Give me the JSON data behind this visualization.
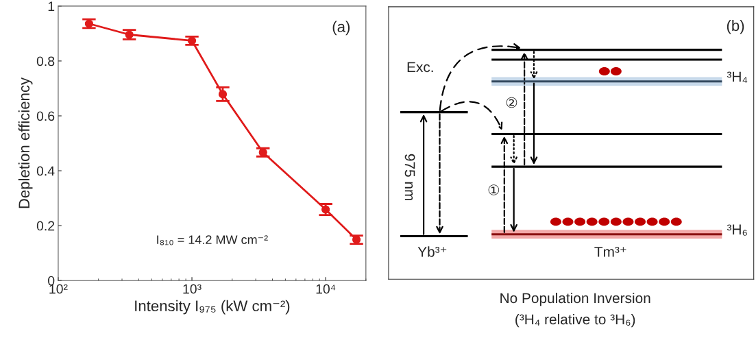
{
  "chart_data": [
    {
      "type": "line",
      "xlabel": "Intensity I₉₇₅ (kW cm⁻²)",
      "ylabel": "Depletion efficiency",
      "annotations": [
        "(a)",
        "I₈₁₀ = 14.2 MW cm⁻²"
      ],
      "log": "x",
      "xlim": [
        100,
        20000
      ],
      "xticks": [
        {
          "value": 100,
          "label": "10²"
        },
        {
          "value": 1000,
          "label": "10³"
        },
        {
          "value": 10000,
          "label": "10⁴"
        }
      ],
      "ylim": [
        0,
        1
      ],
      "yticks": [
        0,
        0.2,
        0.4,
        0.6,
        0.8,
        1
      ],
      "grid": false,
      "marker": "circle",
      "line_style": "solid",
      "x": [
        170,
        340,
        1000,
        1700,
        3400,
        10000,
        17000
      ],
      "series": [
        {
          "color": "#e01b1b",
          "values": [
            0.936,
            0.896,
            0.874,
            0.679,
            0.467,
            0.259,
            0.149
          ],
          "errors": [
            0.016,
            0.017,
            0.015,
            0.025,
            0.015,
            0.02,
            0.015
          ]
        }
      ]
    },
    {
      "type": "other",
      "annotations": [
        "(b)",
        "Exc.",
        "975 nm",
        "②",
        "①",
        "³H₄",
        "³H₆",
        "Yb³⁺",
        "Tm³⁺",
        "No Population Inversion",
        "(³H₄ relative to ³H₆)"
      ]
    }
  ]
}
